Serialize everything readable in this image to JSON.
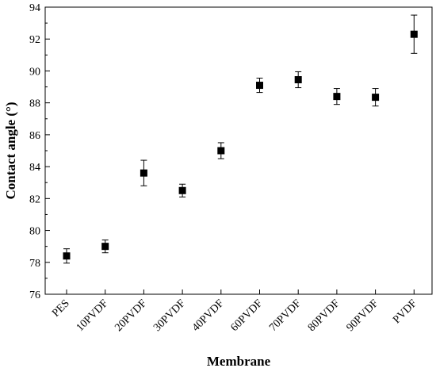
{
  "chart_data": {
    "type": "scatter",
    "title": "",
    "xlabel": "Membrane",
    "ylabel": "Contact angle (°)",
    "categories": [
      "PES",
      "10PVDF",
      "20PVDF",
      "30PVDF",
      "40PVDF",
      "60PVDF",
      "70PVDF",
      "80PVDF",
      "90PVDF",
      "PVDF"
    ],
    "series": [
      {
        "values": [
          78.4,
          79.0,
          83.6,
          82.5,
          85.0,
          89.1,
          89.45,
          88.4,
          88.35,
          92.3
        ],
        "error": [
          0.45,
          0.4,
          0.8,
          0.4,
          0.5,
          0.45,
          0.5,
          0.5,
          0.55,
          1.2
        ],
        "marker": "square",
        "color": "#000000"
      }
    ],
    "ylim": [
      76,
      94
    ],
    "yticks": [
      76,
      78,
      80,
      82,
      84,
      86,
      88,
      90,
      92,
      94
    ],
    "grid": false,
    "legend": "none"
  }
}
